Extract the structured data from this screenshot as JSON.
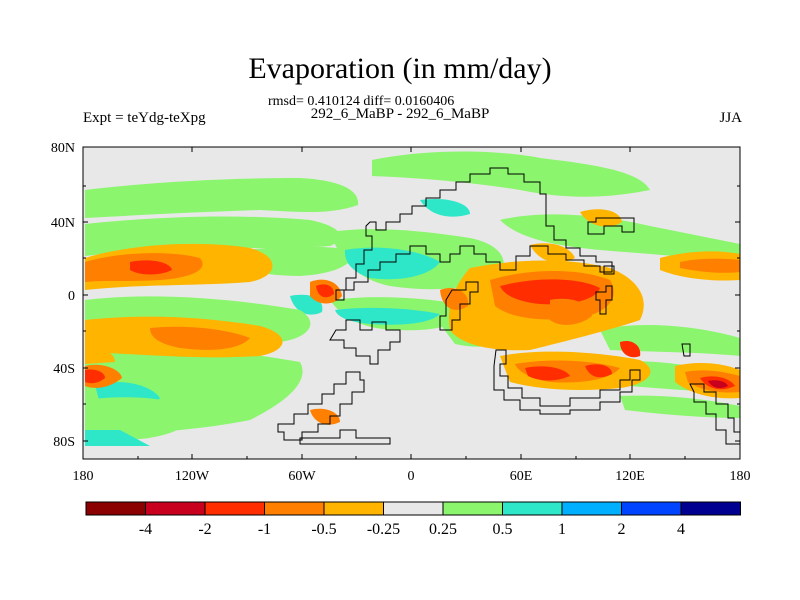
{
  "title": "Evaporation (in mm/day)",
  "stats": "rmsd= 0.410124 diff= 0.0160406",
  "expt_label": "Expt = teYdg-teXpg",
  "expt_name": "292_6_MaBP - 292_6_MaBP",
  "season": "JJA",
  "axes": {
    "lat_ticks": [
      "80N",
      "40N",
      "0",
      "40S",
      "80S"
    ],
    "lon_ticks": [
      "180",
      "120W",
      "60W",
      "0",
      "60E",
      "120E",
      "180"
    ]
  },
  "colorbar": {
    "colors": [
      "#8b0000",
      "#c8001e",
      "#ff2d00",
      "#ff7f00",
      "#ffb400",
      "#e8e8e8",
      "#8cf56e",
      "#2ee6c8",
      "#00b0ff",
      "#0044ff",
      "#000090"
    ],
    "labels": [
      "-4",
      "-2",
      "-1",
      "-0.5",
      "-0.25",
      "0.25",
      "0.5",
      "1",
      "2",
      "4"
    ]
  }
}
